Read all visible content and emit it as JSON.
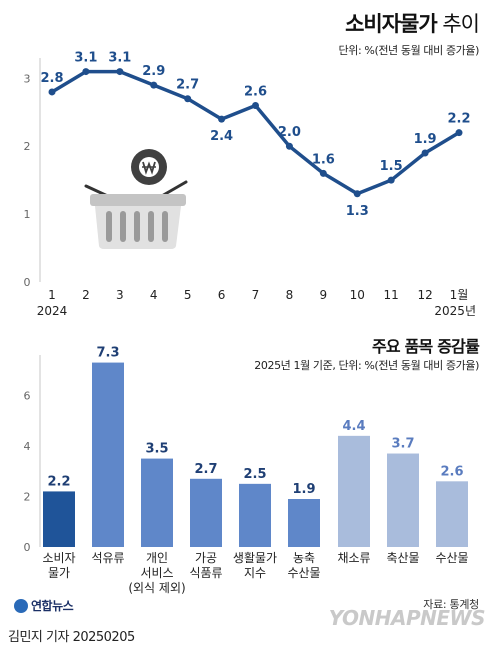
{
  "header": {
    "title_main": "소비자물가",
    "title_sub": " 추이",
    "unit": "단위: %(전년 동월 대비 증가율)"
  },
  "bar_header": {
    "title": "주요 품목 증감률",
    "unit": "2025년 1월 기준, 단위: %(전년 동월 대비 증가율)"
  },
  "footer": {
    "source": "자료: 통계청",
    "reporter": "김민지 기자  20250205",
    "agency": "연합뉴스",
    "watermark": "YONHAPNEWS"
  },
  "chart_data": [
    {
      "type": "line",
      "x": [
        "1",
        "2",
        "3",
        "4",
        "5",
        "6",
        "7",
        "8",
        "9",
        "10",
        "11",
        "12",
        "1월"
      ],
      "x_group_labels": [
        "2024",
        "2025년"
      ],
      "values": [
        2.8,
        3.1,
        3.1,
        2.9,
        2.7,
        2.4,
        2.6,
        2.0,
        1.6,
        1.3,
        1.5,
        1.9,
        2.2
      ],
      "data_labels": [
        "2.8",
        "3.1",
        "3.1",
        "2.9",
        "2.7",
        "2.4",
        "2.6",
        "2.0",
        "1.6",
        "1.3",
        "1.5",
        "1.9",
        "2.2"
      ],
      "yticks": [
        "0",
        "1",
        "2",
        "3"
      ],
      "ylim": [
        0,
        3.3
      ],
      "color": "#1f4e8c",
      "grid": false
    },
    {
      "type": "bar",
      "categories": [
        [
          "소비자",
          "물가"
        ],
        [
          "석유류"
        ],
        [
          "개인",
          "서비스",
          "(외식 제외)"
        ],
        [
          "가공",
          "식품류"
        ],
        [
          "생활물가",
          "지수"
        ],
        [
          "농축",
          "수산물"
        ],
        [
          "채소류"
        ],
        [
          "축산물"
        ],
        [
          "수산물"
        ]
      ],
      "values": [
        2.2,
        7.3,
        3.5,
        2.7,
        2.5,
        1.9,
        4.4,
        3.7,
        2.6
      ],
      "data_labels": [
        "2.2",
        "7.3",
        "3.5",
        "2.7",
        "2.5",
        "1.9",
        "4.4",
        "3.7",
        "2.6"
      ],
      "colors": [
        "#1f5499",
        "#5f87c9",
        "#5f87c9",
        "#5f87c9",
        "#5f87c9",
        "#5f87c9",
        "#a9bcdc",
        "#a9bcdc",
        "#a9bcdc"
      ],
      "label_colors": [
        "#1f3f74",
        "#1f3f74",
        "#1f3f74",
        "#1f3f74",
        "#1f3f74",
        "#1f3f74",
        "#5a7cbf",
        "#5a7cbf",
        "#5a7cbf"
      ],
      "yticks": [
        "0",
        "2",
        "4",
        "6"
      ],
      "ylim": [
        0,
        7.6
      ],
      "grid": false
    }
  ]
}
